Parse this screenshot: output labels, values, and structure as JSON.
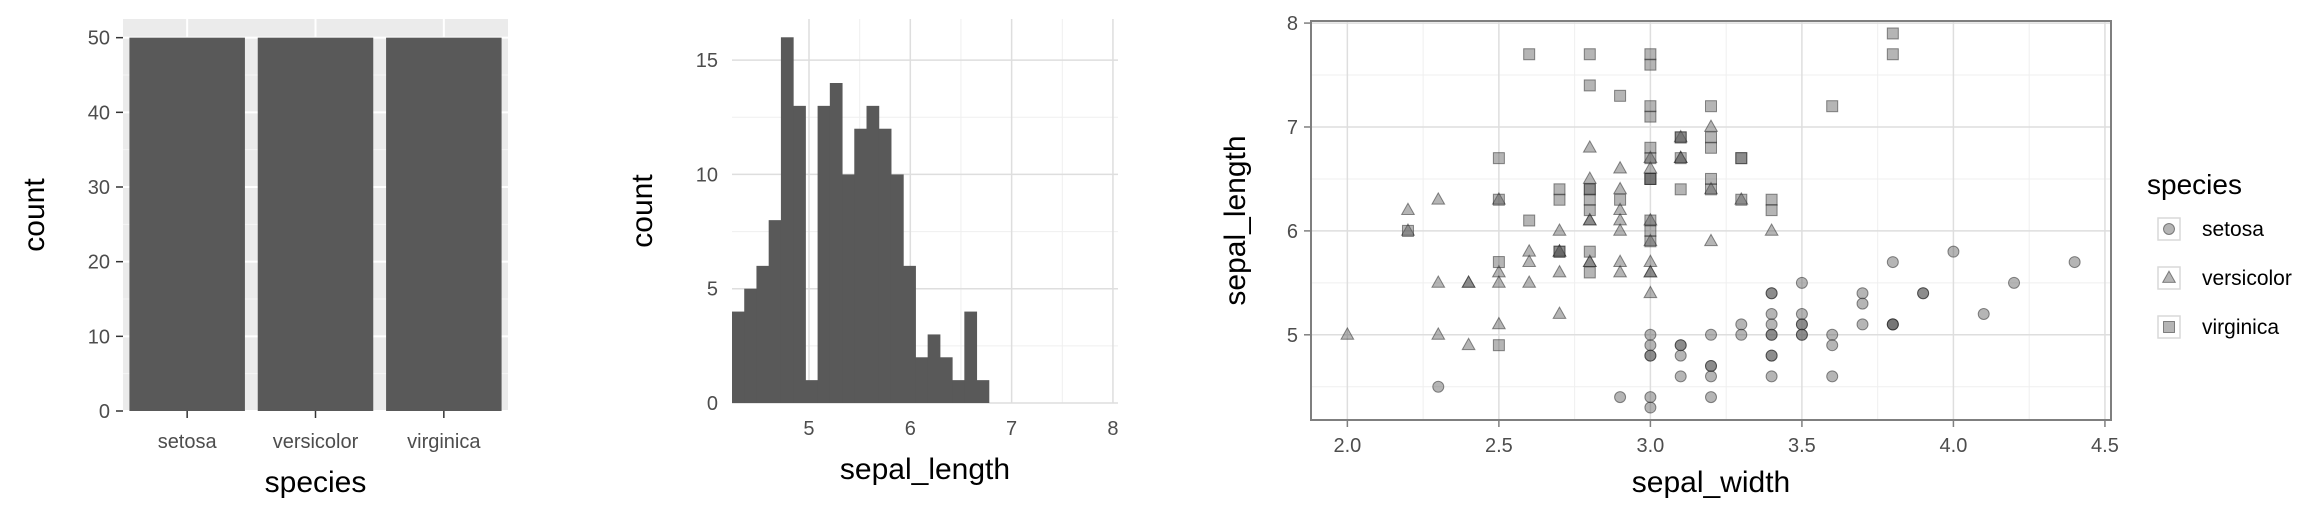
{
  "colors": {
    "bar_fill": "#595959",
    "panel_bg_gray": "#ebebeb",
    "grid_on_gray": "#ffffff",
    "grid_major": "#dedede",
    "grid_minor": "#efefef",
    "panel_border": "#7f7f7f",
    "point_fill": "#5a5a5a",
    "tick_text": "#4d4d4d"
  },
  "chart_data": [
    {
      "type": "bar",
      "title": "",
      "xlabel": "species",
      "ylabel": "count",
      "categories": [
        "setosa",
        "versicolor",
        "virginica"
      ],
      "values": [
        50,
        50,
        50
      ],
      "ylim": [
        0,
        52.5
      ],
      "yticks": [
        0,
        10,
        20,
        30,
        40,
        50
      ],
      "grid": true,
      "theme": "gray"
    },
    {
      "type": "bar",
      "subtype": "histogram",
      "title": "",
      "xlabel": "sepal_length",
      "ylabel": "count",
      "bin_width": 0.1207,
      "x_start": 4.24,
      "values": [
        4,
        5,
        6,
        8,
        16,
        13,
        1,
        13,
        14,
        10,
        12,
        13,
        12,
        10,
        6,
        2,
        3,
        2,
        1,
        4,
        1
      ],
      "xlim": [
        4.24,
        8.05
      ],
      "xticks": [
        5,
        6,
        7,
        8
      ],
      "ylim": [
        0,
        16.8
      ],
      "yticks": [
        0,
        5,
        10,
        15
      ],
      "grid": true,
      "theme": "minimal"
    },
    {
      "type": "scatter",
      "title": "",
      "xlabel": "sepal_width",
      "ylabel": "sepal_length",
      "xlim": [
        1.88,
        4.52
      ],
      "ylim": [
        4.18,
        8.02
      ],
      "xticks": [
        "2.0",
        "2.5",
        "3.0",
        "3.5",
        "4.0",
        "4.5"
      ],
      "yticks": [
        "5",
        "6",
        "7",
        "8"
      ],
      "grid": true,
      "theme": "light",
      "legend": {
        "title": "species",
        "position": "right"
      },
      "series": [
        {
          "name": "setosa",
          "shape": "circle",
          "points": [
            [
              3.5,
              5.1
            ],
            [
              3.0,
              4.9
            ],
            [
              3.2,
              4.7
            ],
            [
              3.1,
              4.6
            ],
            [
              3.6,
              5.0
            ],
            [
              3.9,
              5.4
            ],
            [
              3.4,
              4.6
            ],
            [
              3.4,
              5.0
            ],
            [
              2.9,
              4.4
            ],
            [
              3.1,
              4.9
            ],
            [
              3.7,
              5.4
            ],
            [
              3.4,
              4.8
            ],
            [
              3.0,
              4.8
            ],
            [
              3.0,
              4.3
            ],
            [
              4.0,
              5.8
            ],
            [
              4.4,
              5.7
            ],
            [
              3.9,
              5.4
            ],
            [
              3.5,
              5.1
            ],
            [
              3.8,
              5.7
            ],
            [
              3.8,
              5.1
            ],
            [
              3.4,
              5.4
            ],
            [
              3.7,
              5.1
            ],
            [
              3.6,
              4.6
            ],
            [
              3.3,
              5.1
            ],
            [
              3.4,
              4.8
            ],
            [
              3.0,
              5.0
            ],
            [
              3.4,
              5.0
            ],
            [
              3.5,
              5.2
            ],
            [
              3.4,
              5.2
            ],
            [
              3.2,
              4.7
            ],
            [
              3.1,
              4.8
            ],
            [
              3.4,
              5.4
            ],
            [
              4.1,
              5.2
            ],
            [
              4.2,
              5.5
            ],
            [
              3.1,
              4.9
            ],
            [
              3.2,
              5.0
            ],
            [
              3.5,
              5.5
            ],
            [
              3.6,
              4.9
            ],
            [
              3.0,
              4.4
            ],
            [
              3.4,
              5.1
            ],
            [
              3.5,
              5.0
            ],
            [
              2.3,
              4.5
            ],
            [
              3.2,
              4.4
            ],
            [
              3.5,
              5.0
            ],
            [
              3.8,
              5.1
            ],
            [
              3.0,
              4.8
            ],
            [
              3.8,
              5.1
            ],
            [
              3.2,
              4.6
            ],
            [
              3.7,
              5.3
            ],
            [
              3.3,
              5.0
            ]
          ]
        },
        {
          "name": "versicolor",
          "shape": "triangle",
          "points": [
            [
              3.2,
              7.0
            ],
            [
              3.2,
              6.4
            ],
            [
              3.1,
              6.9
            ],
            [
              2.3,
              5.5
            ],
            [
              2.8,
              6.5
            ],
            [
              2.8,
              5.7
            ],
            [
              3.3,
              6.3
            ],
            [
              2.4,
              4.9
            ],
            [
              2.9,
              6.6
            ],
            [
              2.7,
              5.2
            ],
            [
              2.0,
              5.0
            ],
            [
              3.0,
              5.9
            ],
            [
              2.2,
              6.0
            ],
            [
              2.9,
              6.1
            ],
            [
              2.9,
              5.6
            ],
            [
              3.1,
              6.7
            ],
            [
              3.0,
              5.6
            ],
            [
              2.7,
              5.8
            ],
            [
              2.2,
              6.2
            ],
            [
              2.5,
              5.6
            ],
            [
              3.2,
              5.9
            ],
            [
              2.8,
              6.1
            ],
            [
              2.5,
              6.3
            ],
            [
              2.8,
              6.1
            ],
            [
              2.9,
              6.4
            ],
            [
              3.0,
              6.6
            ],
            [
              2.8,
              6.8
            ],
            [
              3.0,
              6.7
            ],
            [
              2.9,
              6.0
            ],
            [
              2.6,
              5.7
            ],
            [
              2.4,
              5.5
            ],
            [
              2.4,
              5.5
            ],
            [
              2.7,
              5.8
            ],
            [
              2.7,
              6.0
            ],
            [
              3.0,
              5.4
            ],
            [
              3.4,
              6.0
            ],
            [
              3.1,
              6.7
            ],
            [
              2.3,
              6.3
            ],
            [
              3.0,
              5.6
            ],
            [
              2.5,
              5.5
            ],
            [
              2.6,
              5.5
            ],
            [
              3.0,
              6.1
            ],
            [
              2.6,
              5.8
            ],
            [
              2.3,
              5.0
            ],
            [
              2.7,
              5.6
            ],
            [
              3.0,
              5.7
            ],
            [
              2.9,
              5.7
            ],
            [
              2.9,
              6.2
            ],
            [
              2.5,
              5.1
            ],
            [
              2.8,
              5.7
            ]
          ]
        },
        {
          "name": "virginica",
          "shape": "square",
          "points": [
            [
              3.3,
              6.3
            ],
            [
              2.7,
              5.8
            ],
            [
              3.0,
              7.1
            ],
            [
              2.9,
              6.3
            ],
            [
              3.0,
              6.5
            ],
            [
              3.0,
              7.6
            ],
            [
              2.5,
              4.9
            ],
            [
              2.9,
              7.3
            ],
            [
              2.5,
              6.7
            ],
            [
              3.6,
              7.2
            ],
            [
              3.2,
              6.5
            ],
            [
              2.7,
              6.4
            ],
            [
              3.0,
              6.8
            ],
            [
              2.5,
              5.7
            ],
            [
              2.8,
              5.8
            ],
            [
              3.2,
              6.4
            ],
            [
              3.0,
              6.5
            ],
            [
              3.8,
              7.7
            ],
            [
              2.6,
              7.7
            ],
            [
              2.2,
              6.0
            ],
            [
              3.2,
              6.9
            ],
            [
              2.8,
              5.6
            ],
            [
              2.8,
              7.7
            ],
            [
              2.7,
              6.3
            ],
            [
              3.3,
              6.7
            ],
            [
              3.2,
              7.2
            ],
            [
              2.8,
              6.2
            ],
            [
              3.0,
              6.1
            ],
            [
              2.8,
              6.4
            ],
            [
              3.0,
              7.2
            ],
            [
              2.8,
              7.4
            ],
            [
              3.8,
              7.9
            ],
            [
              2.8,
              6.4
            ],
            [
              2.8,
              6.3
            ],
            [
              2.6,
              6.1
            ],
            [
              3.0,
              7.7
            ],
            [
              3.4,
              6.3
            ],
            [
              3.1,
              6.4
            ],
            [
              3.0,
              6.0
            ],
            [
              3.1,
              6.9
            ],
            [
              3.1,
              6.7
            ],
            [
              3.1,
              6.9
            ],
            [
              2.7,
              5.8
            ],
            [
              3.2,
              6.8
            ],
            [
              3.3,
              6.7
            ],
            [
              3.0,
              6.7
            ],
            [
              2.5,
              6.3
            ],
            [
              3.0,
              6.5
            ],
            [
              3.4,
              6.2
            ],
            [
              3.0,
              5.9
            ]
          ]
        }
      ]
    }
  ]
}
